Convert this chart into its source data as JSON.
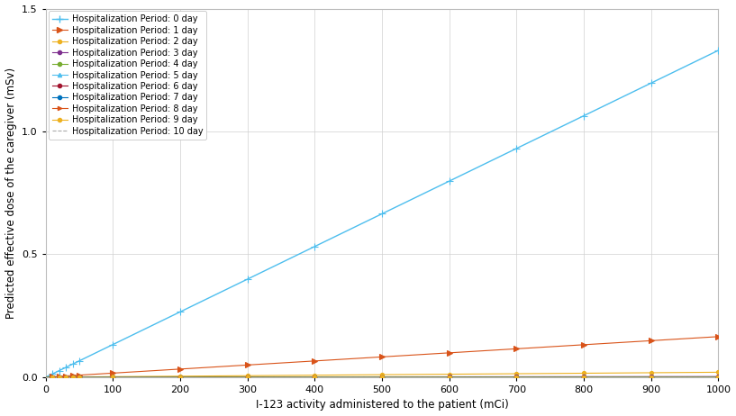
{
  "title": "",
  "xlabel": "I-123 activity administered to the patient (mCi)",
  "ylabel": "Predicted effective dose of the caregiver (mSv)",
  "xlim": [
    0,
    1000
  ],
  "ylim": [
    0,
    1.5
  ],
  "xticks": [
    0,
    100,
    200,
    300,
    400,
    500,
    600,
    700,
    800,
    900,
    1000
  ],
  "yticks": [
    0,
    0.5,
    1.0,
    1.5
  ],
  "x_markers": [
    10,
    20,
    30,
    40,
    50,
    100,
    200,
    300,
    400,
    500,
    600,
    700,
    800,
    900,
    1000
  ],
  "series": [
    {
      "label": "Hospitalization Period: 0 day",
      "slope": 0.00133,
      "color": "#4DBEEE",
      "marker": "+",
      "linestyle": "-",
      "linewidth": 1.0,
      "markersize": 6
    },
    {
      "label": "Hospitalization Period: 1 day",
      "slope": 0.000165,
      "color": "#D95319",
      "marker": ">",
      "linestyle": "-",
      "linewidth": 0.8,
      "markersize": 4
    },
    {
      "label": "Hospitalization Period: 2 day",
      "slope": 2e-05,
      "color": "#EDB120",
      "marker": "o",
      "linestyle": "-",
      "linewidth": 0.8,
      "markersize": 3
    },
    {
      "label": "Hospitalization Period: 3 day",
      "slope": 2.4e-06,
      "color": "#7E2F8E",
      "marker": "o",
      "linestyle": "-",
      "linewidth": 0.8,
      "markersize": 3
    },
    {
      "label": "Hospitalization Period: 4 day",
      "slope": 3e-07,
      "color": "#77AC30",
      "marker": "o",
      "linestyle": "-",
      "linewidth": 0.8,
      "markersize": 3
    },
    {
      "label": "Hospitalization Period: 5 day",
      "slope": 3.8e-08,
      "color": "#4DBEEE",
      "marker": "^",
      "linestyle": "-",
      "linewidth": 0.8,
      "markersize": 3
    },
    {
      "label": "Hospitalization Period: 6 day",
      "slope": 5e-09,
      "color": "#A2142F",
      "marker": "o",
      "linestyle": "-",
      "linewidth": 0.8,
      "markersize": 3
    },
    {
      "label": "Hospitalization Period: 7 day",
      "slope": 7e-10,
      "color": "#0072BD",
      "marker": "o",
      "linestyle": "-",
      "linewidth": 0.8,
      "markersize": 3
    },
    {
      "label": "Hospitalization Period: 8 day",
      "slope": 9.5e-11,
      "color": "#D95319",
      "marker": ">",
      "linestyle": "-",
      "linewidth": 0.8,
      "markersize": 3
    },
    {
      "label": "Hospitalization Period: 9 day",
      "slope": 1.3e-11,
      "color": "#EDB120",
      "marker": "o",
      "linestyle": "-",
      "linewidth": 0.8,
      "markersize": 3
    },
    {
      "label": "Hospitalization Period: 10 day",
      "slope": 1.8e-12,
      "color": "#AAAAAA",
      "marker": "none",
      "linestyle": "--",
      "linewidth": 0.8,
      "markersize": 3
    }
  ],
  "background_color": "#FFFFFF",
  "grid_color": "#D0D0D0",
  "legend_fontsize": 7.0,
  "axis_fontsize": 8.5,
  "tick_fontsize": 8
}
